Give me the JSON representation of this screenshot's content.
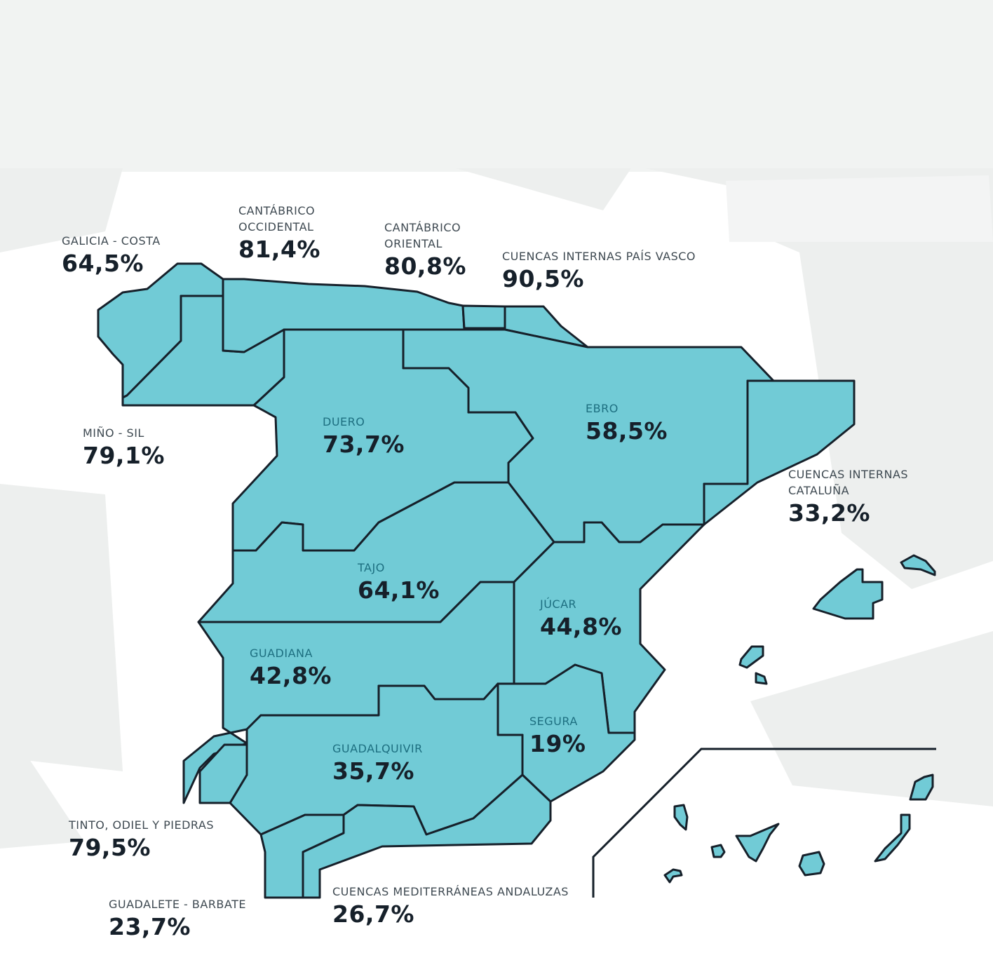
{
  "colors": {
    "background_top": "#f1f3f2",
    "background_page": "#ffffff",
    "background_shape": "#eceeed",
    "basin_fill": "#71cbd6",
    "border": "#16202a",
    "label_dark": "#3f4a52",
    "label_inside": "#1d6f80"
  },
  "basins": {
    "galicia_costa": {
      "name": "GALICIA - COSTA",
      "value": "64,5%",
      "percent": 64.5
    },
    "cantabrico_occidental": {
      "name_line1": "CANTÁBRICO",
      "name_line2": "OCCIDENTAL",
      "value": "81,4%",
      "percent": 81.4
    },
    "cantabrico_oriental": {
      "name_line1": "CANTÁBRICO",
      "name_line2": "ORIENTAL",
      "value": "80,8%",
      "percent": 80.8
    },
    "pais_vasco": {
      "name": "CUENCAS INTERNAS PAÍS VASCO",
      "value": "90,5%",
      "percent": 90.5
    },
    "mino_sil": {
      "name": "MIÑO - SIL",
      "value": "79,1%",
      "percent": 79.1
    },
    "duero": {
      "name": "DUERO",
      "value": "73,7%",
      "percent": 73.7
    },
    "ebro": {
      "name": "EBRO",
      "value": "58,5%",
      "percent": 58.5
    },
    "cataluna": {
      "name_line1": "CUENCAS INTERNAS",
      "name_line2": "CATALUÑA",
      "value": "33,2%",
      "percent": 33.2
    },
    "tajo": {
      "name": "TAJO",
      "value": "64,1%",
      "percent": 64.1
    },
    "jucar": {
      "name": "JÚCAR",
      "value": "44,8%",
      "percent": 44.8
    },
    "guadiana": {
      "name": "GUADIANA",
      "value": "42,8%",
      "percent": 42.8
    },
    "segura": {
      "name": "SEGURA",
      "value": "19%",
      "percent": 19
    },
    "guadalquivir": {
      "name": "GUADALQUIVIR",
      "value": "35,7%",
      "percent": 35.7
    },
    "tinto_odiel_piedras": {
      "name": "TINTO, ODIEL Y PIEDRAS",
      "value": "79,5%",
      "percent": 79.5
    },
    "guadalete_barbate": {
      "name": "GUADALETE - BARBATE",
      "value": "23,7%",
      "percent": 23.7
    },
    "mediterraneas_andaluzas": {
      "name": "CUENCAS MEDITERRÁNEAS ANDALUZAS",
      "value": "26,7%",
      "percent": 26.7
    }
  }
}
